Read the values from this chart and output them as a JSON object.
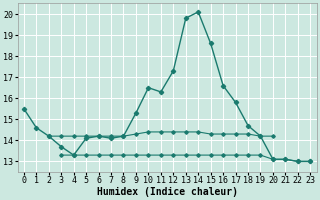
{
  "xlabel": "Humidex (Indice chaleur)",
  "background_color": "#cce8e0",
  "grid_color": "#ffffff",
  "line_color": "#1a7a6e",
  "xlim": [
    -0.5,
    23.5
  ],
  "ylim": [
    12.5,
    20.5
  ],
  "xticks": [
    0,
    1,
    2,
    3,
    4,
    5,
    6,
    7,
    8,
    9,
    10,
    11,
    12,
    13,
    14,
    15,
    16,
    17,
    18,
    19,
    20,
    21,
    22,
    23
  ],
  "yticks": [
    13,
    14,
    15,
    16,
    17,
    18,
    19,
    20
  ],
  "series1_x": [
    0,
    1,
    2,
    3,
    4,
    5,
    6,
    7,
    8,
    9,
    10,
    11,
    12,
    13,
    14,
    15,
    16,
    17,
    18,
    19,
    20,
    21,
    22,
    23
  ],
  "series1_y": [
    15.5,
    14.6,
    14.2,
    13.7,
    13.3,
    14.1,
    14.2,
    14.1,
    14.2,
    15.3,
    16.5,
    16.3,
    17.3,
    19.8,
    20.1,
    18.6,
    16.6,
    15.8,
    14.7,
    14.2,
    13.1,
    13.1,
    13.0,
    13.0
  ],
  "series2_x": [
    0,
    1,
    2,
    3,
    4,
    5,
    6,
    7,
    8,
    9,
    10,
    11,
    12,
    13,
    14,
    15,
    16,
    17,
    18,
    19,
    20,
    21,
    22,
    23
  ],
  "series2_y": [
    null,
    null,
    14.2,
    14.2,
    14.2,
    14.2,
    14.2,
    14.2,
    14.2,
    14.3,
    14.4,
    14.4,
    14.4,
    14.4,
    14.4,
    14.3,
    14.3,
    14.3,
    14.3,
    14.2,
    14.2,
    null,
    null,
    null
  ],
  "series3_x": [
    0,
    1,
    2,
    3,
    4,
    5,
    6,
    7,
    8,
    9,
    10,
    11,
    12,
    13,
    14,
    15,
    16,
    17,
    18,
    19,
    20,
    21,
    22,
    23
  ],
  "series3_y": [
    null,
    null,
    null,
    13.3,
    13.3,
    13.3,
    13.3,
    13.3,
    13.3,
    13.3,
    13.3,
    13.3,
    13.3,
    13.3,
    13.3,
    13.3,
    13.3,
    13.3,
    13.3,
    13.3,
    13.1,
    13.1,
    13.0,
    13.0
  ],
  "tick_fontsize": 6,
  "xlabel_fontsize": 7
}
